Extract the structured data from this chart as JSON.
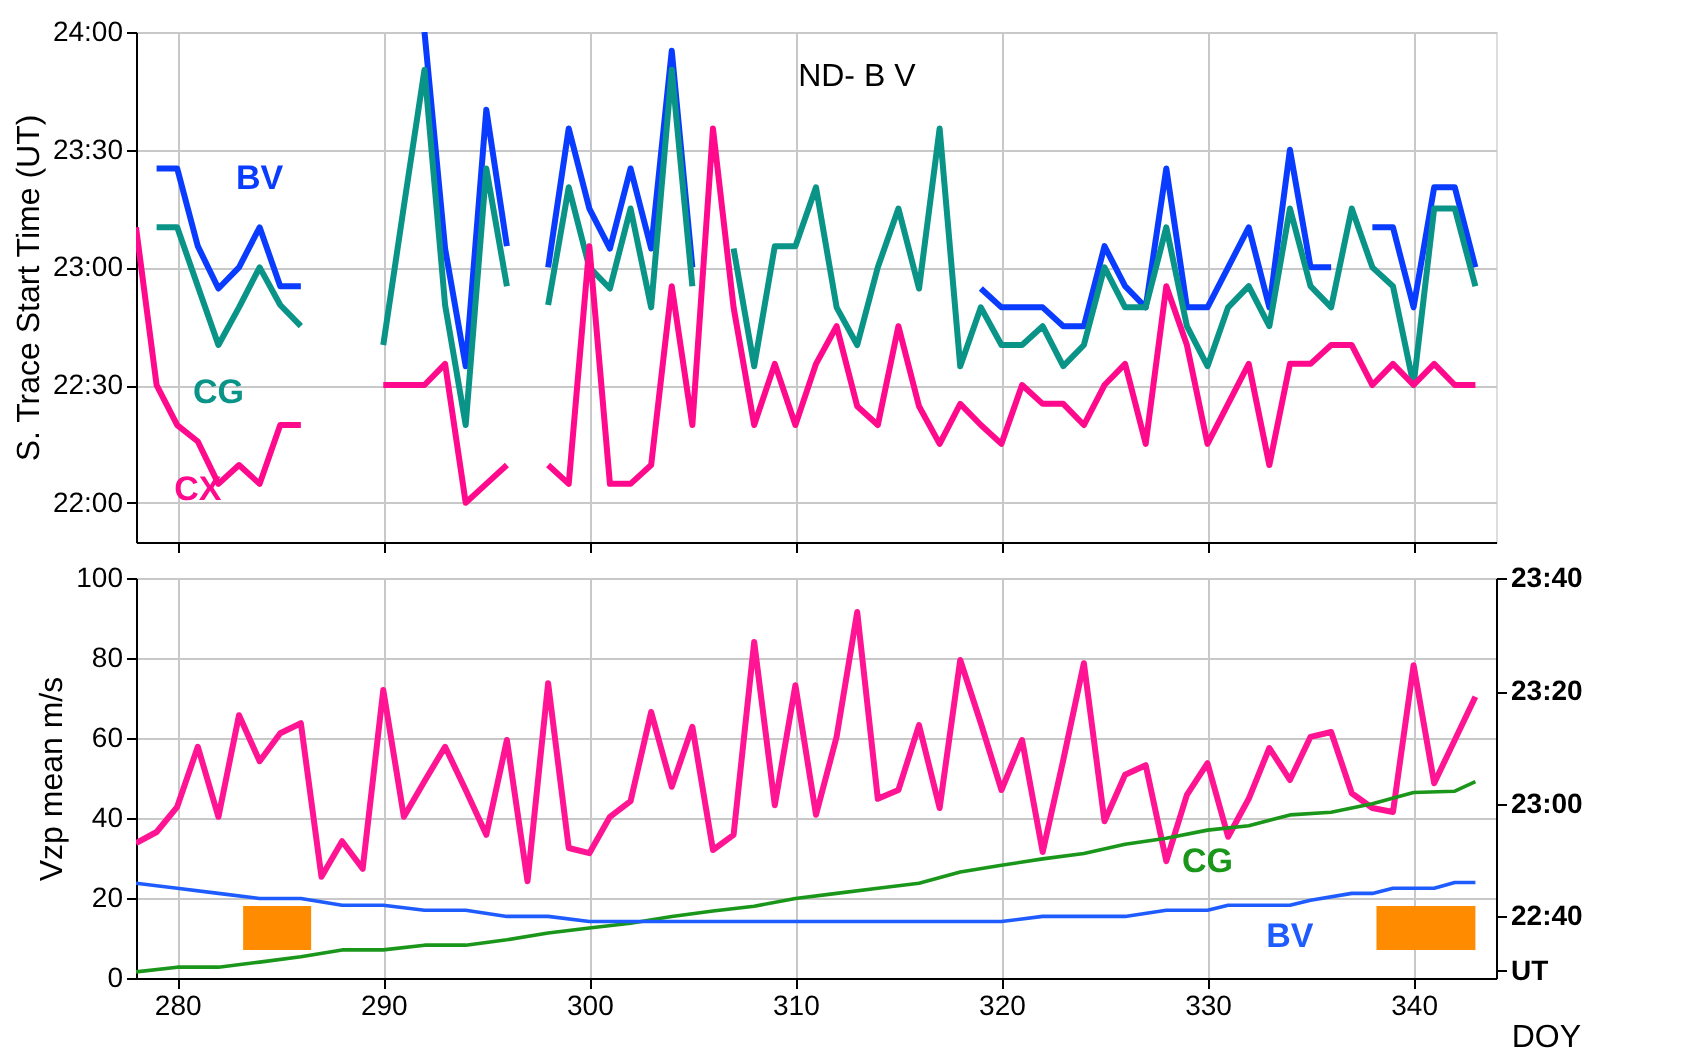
{
  "chart_data": [
    {
      "type": "line",
      "ylabel": "S. Trace Start Time (UT)",
      "xlim": [
        278,
        344
      ],
      "xticks": [
        280,
        290,
        300,
        310,
        320,
        330,
        340
      ],
      "ylim": [
        21.833,
        24
      ],
      "yticks": [
        {
          "value": 22,
          "label": "22:00"
        },
        {
          "value": 22.5,
          "label": "22:30"
        },
        {
          "value": 23,
          "label": "23:00"
        },
        {
          "value": 23.5,
          "label": "23:30"
        },
        {
          "value": 24,
          "label": "24:00"
        }
      ],
      "grid": true,
      "tick_labels": "y",
      "annotations": [
        "ND- B V"
      ],
      "x": [
        278,
        279,
        280,
        281,
        282,
        283,
        284,
        285,
        286,
        287,
        288,
        289,
        290,
        291,
        292,
        293,
        294,
        295,
        296,
        297,
        298,
        299,
        300,
        301,
        302,
        303,
        304,
        305,
        306,
        307,
        308,
        309,
        310,
        311,
        312,
        313,
        314,
        315,
        316,
        317,
        318,
        319,
        320,
        321,
        322,
        323,
        324,
        325,
        326,
        327,
        328,
        329,
        330,
        331,
        332,
        333,
        334,
        335,
        336,
        337,
        338,
        339,
        340,
        341,
        342,
        343
      ],
      "series": [
        {
          "name": "BV",
          "color": "#0a3cff",
          "values": [
            null,
            23.42,
            23.42,
            23.09,
            22.91,
            23.0,
            23.17,
            22.92,
            22.92,
            null,
            null,
            null,
            null,
            null,
            24.0,
            23.08,
            22.58,
            23.67,
            23.09,
            null,
            23.0,
            23.59,
            23.25,
            23.08,
            23.42,
            23.08,
            23.92,
            23.0,
            null,
            null,
            null,
            null,
            null,
            null,
            null,
            null,
            null,
            null,
            null,
            null,
            null,
            22.91,
            22.83,
            22.83,
            22.83,
            22.75,
            22.75,
            23.09,
            22.92,
            22.83,
            23.42,
            22.83,
            22.83,
            23.0,
            23.17,
            22.83,
            23.5,
            23.0,
            23.0,
            null,
            23.17,
            23.17,
            22.83,
            23.34,
            23.34,
            23.0
          ]
        },
        {
          "name": "CG",
          "color": "#0a9488",
          "values": [
            null,
            23.17,
            23.17,
            22.92,
            22.67,
            22.83,
            23.0,
            22.84,
            22.75,
            null,
            null,
            null,
            22.67,
            23.26,
            23.84,
            22.84,
            22.33,
            23.42,
            22.92,
            null,
            22.84,
            23.34,
            23.0,
            22.91,
            23.25,
            22.83,
            23.84,
            22.92,
            null,
            23.08,
            22.58,
            23.09,
            23.09,
            23.34,
            22.83,
            22.67,
            23.0,
            23.25,
            22.91,
            23.59,
            22.58,
            22.83,
            22.67,
            22.67,
            22.75,
            22.58,
            22.67,
            23.0,
            22.83,
            22.83,
            23.17,
            22.75,
            22.58,
            22.83,
            22.92,
            22.75,
            23.25,
            22.92,
            22.83,
            23.25,
            23.0,
            22.92,
            22.5,
            23.25,
            23.25,
            22.92
          ]
        },
        {
          "name": "CX",
          "color": "#ff0a8c",
          "values": [
            23.17,
            22.5,
            22.33,
            22.26,
            22.08,
            22.16,
            22.08,
            22.33,
            22.33,
            null,
            null,
            null,
            22.5,
            22.5,
            22.5,
            22.59,
            22.0,
            22.08,
            22.16,
            null,
            22.16,
            22.08,
            23.09,
            22.08,
            22.08,
            22.16,
            22.92,
            22.33,
            23.59,
            22.83,
            22.33,
            22.59,
            22.33,
            22.59,
            22.75,
            22.41,
            22.33,
            22.75,
            22.41,
            22.25,
            22.42,
            22.33,
            22.25,
            22.5,
            22.42,
            22.42,
            22.33,
            22.5,
            22.59,
            22.25,
            22.92,
            22.67,
            22.25,
            22.42,
            22.59,
            22.16,
            22.59,
            22.59,
            22.67,
            22.67,
            22.5,
            22.59,
            22.5,
            22.59,
            22.5,
            22.5
          ]
        }
      ]
    },
    {
      "type": "line",
      "xlabel": "DOY",
      "ylabel": "Vzp mean m/s",
      "xlim": [
        278,
        344
      ],
      "xticks": [
        280,
        290,
        300,
        310,
        320,
        330,
        340
      ],
      "ylim": [
        0,
        100
      ],
      "yticks": [
        0,
        20,
        40,
        60,
        80,
        100
      ],
      "y2lim": [
        22.485,
        23.667
      ],
      "y2ticks": [
        {
          "value": 22.507,
          "label": "UT"
        },
        {
          "value": 22.667,
          "label": "22:40"
        },
        {
          "value": 23.0,
          "label": "23:00"
        },
        {
          "value": 23.333,
          "label": "23:20"
        },
        {
          "value": 23.667,
          "label": "23:40"
        }
      ],
      "grid": true,
      "bands": [
        {
          "axis": "x",
          "from": 283.2,
          "to": 286.5,
          "color": "#ff8c00"
        },
        {
          "axis": "x",
          "from": 338.2,
          "to": 343.0,
          "color": "#ff8c00"
        }
      ],
      "x": [
        278,
        279,
        280,
        281,
        282,
        283,
        284,
        285,
        286,
        287,
        288,
        289,
        290,
        291,
        292,
        293,
        294,
        295,
        296,
        297,
        298,
        299,
        300,
        301,
        302,
        303,
        304,
        305,
        306,
        307,
        308,
        309,
        310,
        311,
        312,
        313,
        314,
        315,
        316,
        317,
        318,
        319,
        320,
        321,
        322,
        323,
        324,
        325,
        326,
        327,
        328,
        329,
        330,
        331,
        332,
        333,
        334,
        335,
        336,
        337,
        338,
        339,
        340,
        341,
        342,
        343
      ],
      "series": [
        {
          "color": "#ff1493",
          "values": [
            33.7,
            36.5,
            42.8,
            57.8,
            40.3,
            65.7,
            54.2,
            61.2,
            63.7,
            25.3,
            34.2,
            27.3,
            72,
            40.3,
            49.2,
            57.8,
            47,
            35.8,
            59.5,
            24.2,
            73.7,
            32.5,
            31.2,
            40.3,
            44.2,
            66.5,
            47.8,
            62.8,
            32,
            35.8,
            84,
            43.2,
            73.2,
            40.8,
            60.3,
            91.5,
            44.8,
            47,
            63.2,
            42.5,
            79.5,
            63.7,
            47,
            59.5,
            31.5,
            54.5,
            78.7,
            39.2,
            50.8,
            53.2,
            29.2,
            45.8,
            53.7,
            35.3,
            44.8,
            57.5,
            49.5,
            60.3,
            61.5,
            46.2,
            42.5,
            41.5,
            78.2,
            48.7,
            59.5,
            70.3
          ]
        },
        {
          "name": "CG",
          "color": "#1a961a",
          "axis": "y2",
          "x": [
            278,
            280,
            282,
            284,
            286,
            288,
            290,
            292,
            294,
            296,
            298,
            300,
            302,
            304,
            306,
            308,
            310,
            312,
            314,
            316,
            318,
            320,
            322,
            324,
            326,
            328,
            330,
            332,
            334,
            336,
            338,
            340,
            342,
            343
          ],
          "values": [
            22.503,
            22.517,
            22.517,
            22.532,
            22.548,
            22.568,
            22.568,
            22.582,
            22.582,
            22.598,
            22.618,
            22.633,
            22.647,
            22.667,
            22.683,
            22.697,
            22.72,
            22.735,
            22.75,
            22.765,
            22.798,
            22.818,
            22.837,
            22.853,
            22.88,
            22.898,
            22.922,
            22.935,
            22.967,
            22.975,
            23.0,
            23.033,
            23.037,
            23.065
          ]
        },
        {
          "name": "BV",
          "color": "#1f5cff",
          "axis": "y2",
          "x": [
            278,
            280,
            282,
            284,
            286,
            288,
            290,
            292,
            294,
            296,
            298,
            300,
            320,
            322,
            326,
            328,
            330,
            331,
            334,
            335,
            337,
            338,
            339,
            341,
            342,
            343
          ],
          "values": [
            22.765,
            22.75,
            22.735,
            22.72,
            22.72,
            22.7,
            22.7,
            22.685,
            22.685,
            22.667,
            22.667,
            22.652,
            22.652,
            22.667,
            22.667,
            22.685,
            22.685,
            22.7,
            22.7,
            22.715,
            22.735,
            22.735,
            22.75,
            22.75,
            22.767,
            22.767
          ]
        }
      ]
    }
  ]
}
